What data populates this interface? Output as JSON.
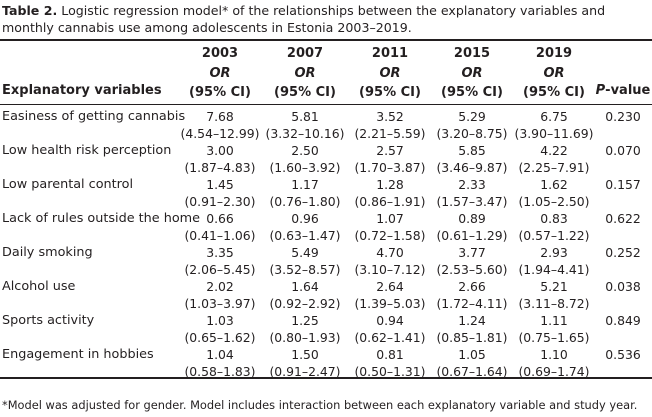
{
  "caption": {
    "label": "Table 2.",
    "text": "Logistic regression model* of the relationships between the explanatory variables and monthly cannabis use among adolescents in Estonia 2003–2019."
  },
  "header": {
    "variable_label": "Explanatory variables",
    "years": [
      "2003",
      "2007",
      "2011",
      "2015",
      "2019"
    ],
    "or_label": "OR",
    "ci_label": "(95% CI)",
    "p_label_italic": "P",
    "p_label_rest": "-value"
  },
  "rows": [
    {
      "variable": "Easiness of getting cannabis",
      "cells": [
        [
          "7.68",
          "(4.54–12.99)"
        ],
        [
          "5.81",
          "(3.32–10.16)"
        ],
        [
          "3.52",
          "(2.21–5.59)"
        ],
        [
          "5.29",
          "(3.20–8.75)"
        ],
        [
          "6.75",
          "(3.90–11.69)"
        ]
      ],
      "p": "0.230"
    },
    {
      "variable": "Low health risk perception",
      "cells": [
        [
          "3.00",
          "(1.87–4.83)"
        ],
        [
          "2.50",
          "(1.60–3.92)"
        ],
        [
          "2.57",
          "(1.70–3.87)"
        ],
        [
          "5.85",
          "(3.46–9.87)"
        ],
        [
          "4.22",
          "(2.25–7.91)"
        ]
      ],
      "p": "0.070"
    },
    {
      "variable": "Low parental control",
      "cells": [
        [
          "1.45",
          "(0.91–2.30)"
        ],
        [
          "1.17",
          "(0.76–1.80)"
        ],
        [
          "1.28",
          "(0.86–1.91)"
        ],
        [
          "2.33",
          "(1.57–3.47)"
        ],
        [
          "1.62",
          "(1.05–2.50)"
        ]
      ],
      "p": "0.157"
    },
    {
      "variable": "Lack of rules outside the home",
      "cells": [
        [
          "0.66",
          "(0.41–1.06)"
        ],
        [
          "0.96",
          "(0.63–1.47)"
        ],
        [
          "1.07",
          "(0.72–1.58)"
        ],
        [
          "0.89",
          "(0.61–1.29)"
        ],
        [
          "0.83",
          "(0.57–1.22)"
        ]
      ],
      "p": "0.622"
    },
    {
      "variable": "Daily smoking",
      "cells": [
        [
          "3.35",
          "(2.06–5.45)"
        ],
        [
          "5.49",
          "(3.52–8.57)"
        ],
        [
          "4.70",
          "(3.10–7.12)"
        ],
        [
          "3.77",
          "(2.53–5.60)"
        ],
        [
          "2.93",
          "(1.94–4.41)"
        ]
      ],
      "p": "0.252"
    },
    {
      "variable": "Alcohol use",
      "cells": [
        [
          "2.02",
          "(1.03–3.97)"
        ],
        [
          "1.64",
          "(0.92–2.92)"
        ],
        [
          "2.64",
          "(1.39–5.03)"
        ],
        [
          "2.66",
          "(1.72–4.11)"
        ],
        [
          "5.21",
          "(3.11–8.72)"
        ]
      ],
      "p": "0.038"
    },
    {
      "variable": "Sports activity",
      "cells": [
        [
          "1.03",
          "(0.65–1.62)"
        ],
        [
          "1.25",
          "(0.80–1.93)"
        ],
        [
          "0.94",
          "(0.62–1.41)"
        ],
        [
          "1.24",
          "(0.85–1.81)"
        ],
        [
          "1.11",
          "(0.75–1.65)"
        ]
      ],
      "p": "0.849"
    },
    {
      "variable": "Engagement in hobbies",
      "cells": [
        [
          "1.04",
          "(0.58–1.83)"
        ],
        [
          "1.50",
          "(0.91–2.47)"
        ],
        [
          "0.81",
          "(0.50–1.31)"
        ],
        [
          "1.05",
          "(0.67–1.64)"
        ],
        [
          "1.10",
          "(0.69–1.74)"
        ]
      ],
      "p": "0.536"
    }
  ],
  "footnote": "*Model was adjusted for gender. Model includes interaction between each explanatory variable and study year."
}
